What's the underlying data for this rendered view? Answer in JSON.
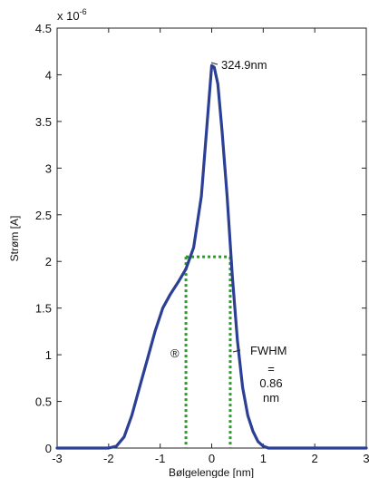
{
  "chart_data": {
    "type": "line",
    "xlabel": "Bølgelengde [nm]",
    "ylabel": "Strøm [A]",
    "y_exponent_label": "x 10",
    "y_exponent_power": "-6",
    "xlim": [
      -3,
      3
    ],
    "ylim": [
      0,
      4.5
    ],
    "x_ticks": [
      -3,
      -2,
      -1,
      0,
      1,
      2,
      3
    ],
    "x_tick_labels": [
      "-3",
      "-2",
      "-1",
      "0",
      "1",
      "2",
      "3"
    ],
    "y_ticks": [
      0,
      0.5,
      1,
      1.5,
      2,
      2.5,
      3,
      3.5,
      4,
      4.5
    ],
    "y_tick_labels": [
      "0",
      "0.5",
      "1",
      "1.5",
      "2",
      "2.5",
      "3",
      "3.5",
      "4",
      "4.5"
    ],
    "grid": false,
    "series": [
      {
        "color": "#2b3f95",
        "x": [
          -3.0,
          -2.0,
          -1.85,
          -1.7,
          -1.55,
          -1.4,
          -1.25,
          -1.1,
          -0.95,
          -0.8,
          -0.65,
          -0.5,
          -0.35,
          -0.2,
          -0.1,
          0.0,
          0.05,
          0.12,
          0.2,
          0.3,
          0.4,
          0.5,
          0.6,
          0.7,
          0.8,
          0.9,
          1.0,
          1.1,
          3.0
        ],
        "y": [
          0,
          0,
          0.02,
          0.12,
          0.35,
          0.65,
          0.95,
          1.25,
          1.5,
          1.65,
          1.78,
          1.92,
          2.15,
          2.7,
          3.4,
          4.1,
          4.08,
          3.9,
          3.4,
          2.7,
          1.85,
          1.15,
          0.65,
          0.35,
          0.18,
          0.07,
          0.02,
          0,
          0
        ]
      }
    ],
    "fwhm_marker": {
      "color": "#22a022",
      "level": 2.05,
      "x_left": -0.5,
      "x_right": 0.36
    },
    "annotations": {
      "peak_label": "324.9nm",
      "peak_x": 0.0,
      "peak_y": 4.1,
      "symbol": "®",
      "fwhm_lines": [
        "FWHM",
        "=",
        "0.86",
        "nm"
      ]
    }
  }
}
